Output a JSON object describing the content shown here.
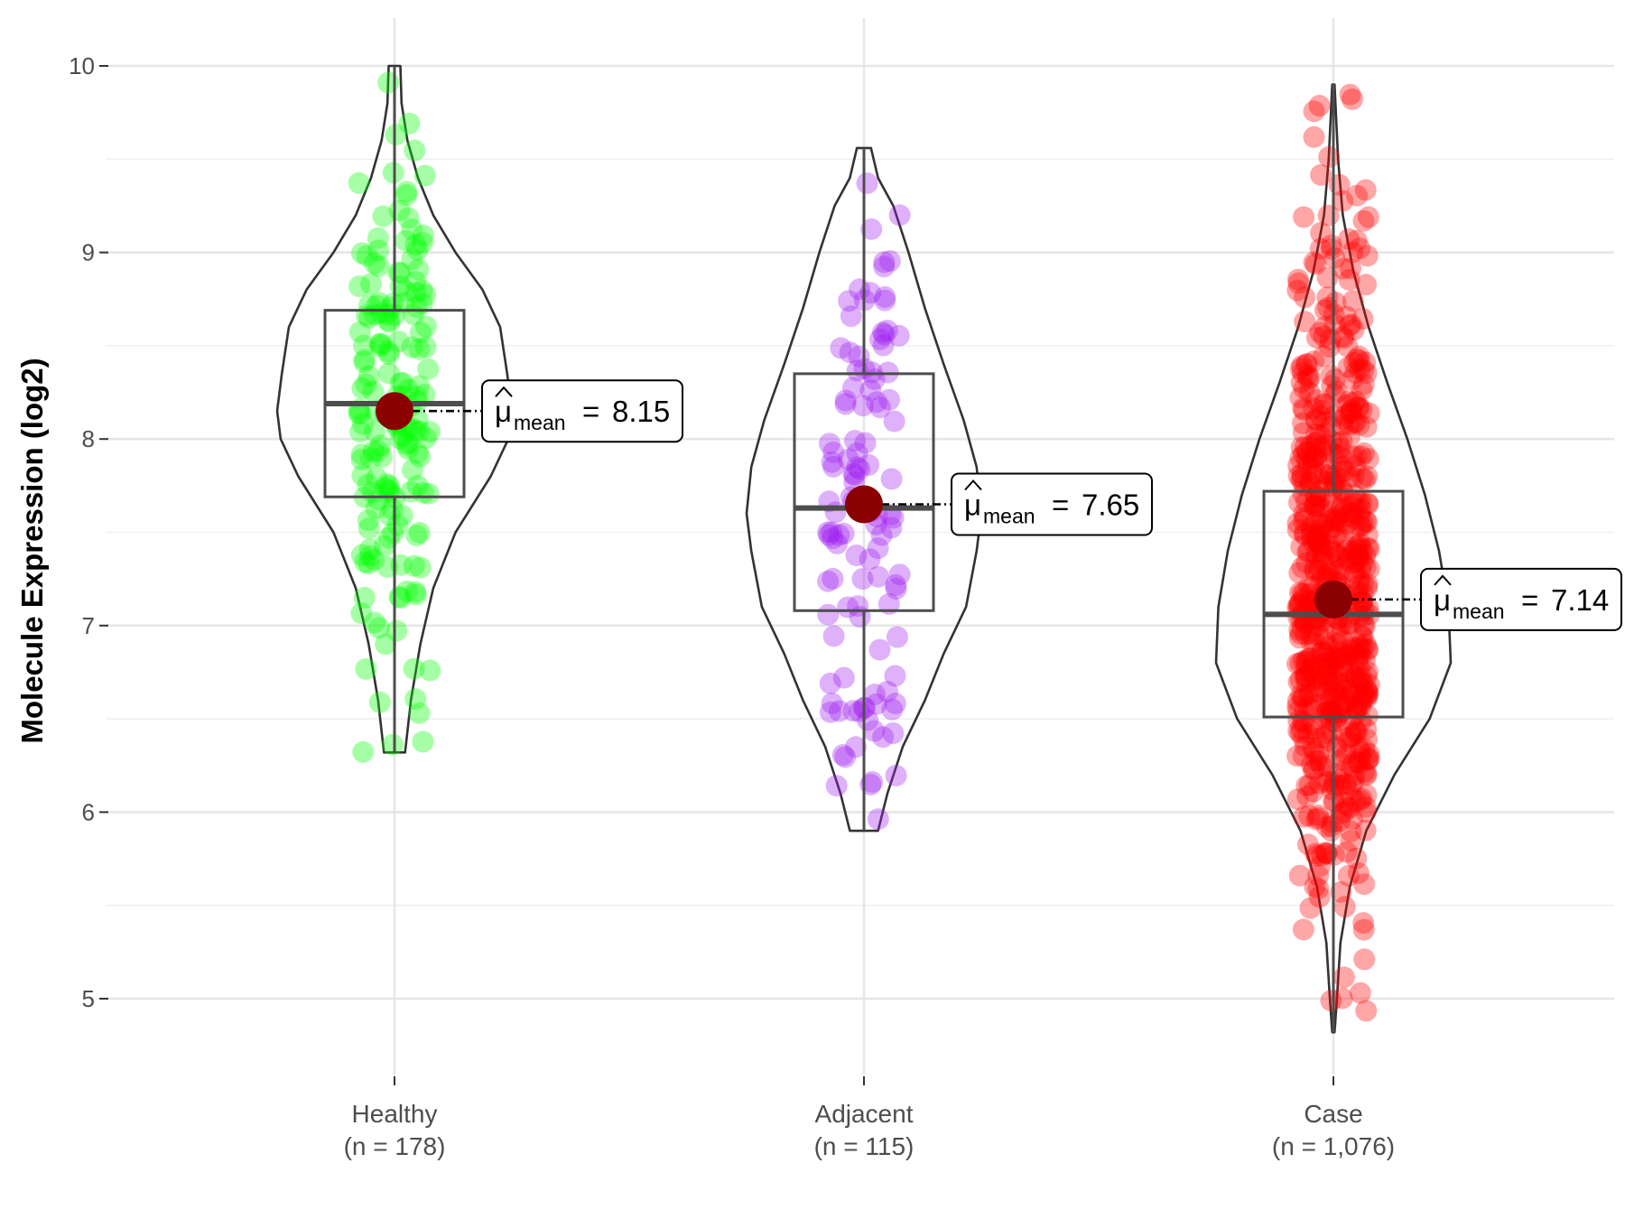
{
  "chart_data": {
    "type": "violin",
    "title": "",
    "xlabel": "",
    "ylabel": "Molecule Expression (log2)",
    "ylim": [
      4.4,
      10.35
    ],
    "yticks": [
      5,
      6,
      7,
      8,
      9,
      10
    ],
    "grid": true,
    "mean_symbol": "μ",
    "mean_subscript": "mean",
    "groups": [
      {
        "name": "Healthy",
        "n_label": "(n = 178)",
        "n": 178,
        "color": "#00ff00",
        "mean": 8.15,
        "mean_label": "8.15",
        "box": {
          "q1": 7.69,
          "median": 8.19,
          "q3": 8.69,
          "whisker_low": 6.32,
          "whisker_high": 10.0
        },
        "violin_range": [
          6.32,
          10.0
        ],
        "density": [
          [
            6.32,
            0.09
          ],
          [
            6.6,
            0.14
          ],
          [
            6.9,
            0.22
          ],
          [
            7.2,
            0.33
          ],
          [
            7.5,
            0.52
          ],
          [
            7.8,
            0.82
          ],
          [
            8.0,
            0.97
          ],
          [
            8.15,
            1.0
          ],
          [
            8.35,
            0.96
          ],
          [
            8.6,
            0.9
          ],
          [
            8.8,
            0.75
          ],
          [
            9.0,
            0.52
          ],
          [
            9.2,
            0.33
          ],
          [
            9.4,
            0.2
          ],
          [
            9.6,
            0.11
          ],
          [
            9.8,
            0.06
          ],
          [
            10.0,
            0.05
          ]
        ]
      },
      {
        "name": "Adjacent",
        "n_label": "(n = 115)",
        "n": 115,
        "color": "#a020f0",
        "mean": 7.65,
        "mean_label": "7.65",
        "box": {
          "q1": 7.08,
          "median": 7.63,
          "q3": 8.35,
          "whisker_low": 5.9,
          "whisker_high": 9.56
        },
        "violin_range": [
          5.9,
          9.56
        ],
        "density": [
          [
            5.9,
            0.12
          ],
          [
            6.1,
            0.2
          ],
          [
            6.35,
            0.33
          ],
          [
            6.6,
            0.52
          ],
          [
            6.85,
            0.68
          ],
          [
            7.1,
            0.87
          ],
          [
            7.4,
            0.96
          ],
          [
            7.6,
            1.0
          ],
          [
            7.85,
            0.96
          ],
          [
            8.1,
            0.85
          ],
          [
            8.4,
            0.68
          ],
          [
            8.7,
            0.52
          ],
          [
            9.0,
            0.38
          ],
          [
            9.25,
            0.25
          ],
          [
            9.4,
            0.12
          ],
          [
            9.56,
            0.06
          ]
        ]
      },
      {
        "name": "Case",
        "n_label": "(n = 1,076)",
        "n": 1076,
        "color": "#ff0000",
        "mean": 7.14,
        "mean_label": "7.14",
        "box": {
          "q1": 6.51,
          "median": 7.06,
          "q3": 7.72,
          "whisker_low": 4.82,
          "whisker_high": 9.9
        },
        "violin_range": [
          4.82,
          9.9
        ],
        "density": [
          [
            4.82,
            0.01
          ],
          [
            5.0,
            0.03
          ],
          [
            5.3,
            0.06
          ],
          [
            5.6,
            0.14
          ],
          [
            5.9,
            0.28
          ],
          [
            6.2,
            0.52
          ],
          [
            6.5,
            0.82
          ],
          [
            6.8,
            1.0
          ],
          [
            7.1,
            0.98
          ],
          [
            7.4,
            0.9
          ],
          [
            7.7,
            0.78
          ],
          [
            8.0,
            0.63
          ],
          [
            8.3,
            0.46
          ],
          [
            8.6,
            0.3
          ],
          [
            8.9,
            0.17
          ],
          [
            9.2,
            0.08
          ],
          [
            9.5,
            0.04
          ],
          [
            9.9,
            0.01
          ]
        ]
      }
    ]
  }
}
